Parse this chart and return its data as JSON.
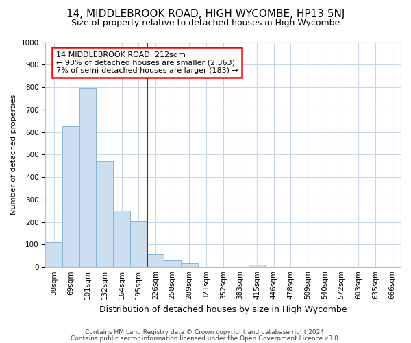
{
  "title": "14, MIDDLEBROOK ROAD, HIGH WYCOMBE, HP13 5NJ",
  "subtitle": "Size of property relative to detached houses in High Wycombe",
  "xlabel": "Distribution of detached houses by size in High Wycombe",
  "ylabel": "Number of detached properties",
  "categories": [
    "38sqm",
    "69sqm",
    "101sqm",
    "132sqm",
    "164sqm",
    "195sqm",
    "226sqm",
    "258sqm",
    "289sqm",
    "321sqm",
    "352sqm",
    "383sqm",
    "415sqm",
    "446sqm",
    "478sqm",
    "509sqm",
    "540sqm",
    "572sqm",
    "603sqm",
    "635sqm",
    "666sqm"
  ],
  "values": [
    110,
    625,
    795,
    470,
    250,
    205,
    60,
    30,
    15,
    0,
    0,
    0,
    10,
    0,
    0,
    0,
    0,
    0,
    0,
    0,
    0
  ],
  "bar_color": "#ccdff0",
  "bar_edge_color": "#8ab4d4",
  "vline_position": 6,
  "highlight_label": "14 MIDDLEBROOK ROAD: 212sqm",
  "annotation_line1": "← 93% of detached houses are smaller (2,363)",
  "annotation_line2": "7% of semi-detached houses are larger (183) →",
  "vline_color": "#cc0000",
  "ylim": [
    0,
    1000
  ],
  "yticks": [
    0,
    100,
    200,
    300,
    400,
    500,
    600,
    700,
    800,
    900,
    1000
  ],
  "footer1": "Contains HM Land Registry data © Crown copyright and database right 2024.",
  "footer2": "Contains public sector information licensed under the Open Government Licence v3.0.",
  "background_color": "#ffffff",
  "grid_color": "#c8d8e8",
  "title_fontsize": 11,
  "subtitle_fontsize": 9,
  "ylabel_fontsize": 8,
  "xlabel_fontsize": 9,
  "tick_fontsize": 7.5,
  "footer_fontsize": 6.5,
  "annot_fontsize": 8
}
